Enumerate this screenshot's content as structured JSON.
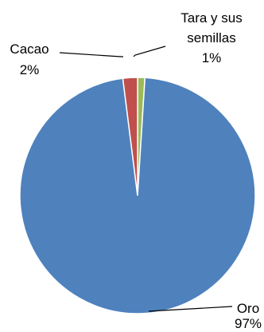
{
  "chart_data": {
    "type": "pie",
    "title": "",
    "legend": "none",
    "slices": [
      {
        "name": "Oro",
        "value": 97,
        "label": "97%",
        "color": "#4F81BD"
      },
      {
        "name": "Cacao",
        "value": 2,
        "label": "2%",
        "color": "#C0504D"
      },
      {
        "name": "Tara y sus semillas",
        "name_lines": [
          "Tara y sus",
          "semillas"
        ],
        "value": 1,
        "label": "1%",
        "color": "#9BBB59"
      }
    ]
  }
}
